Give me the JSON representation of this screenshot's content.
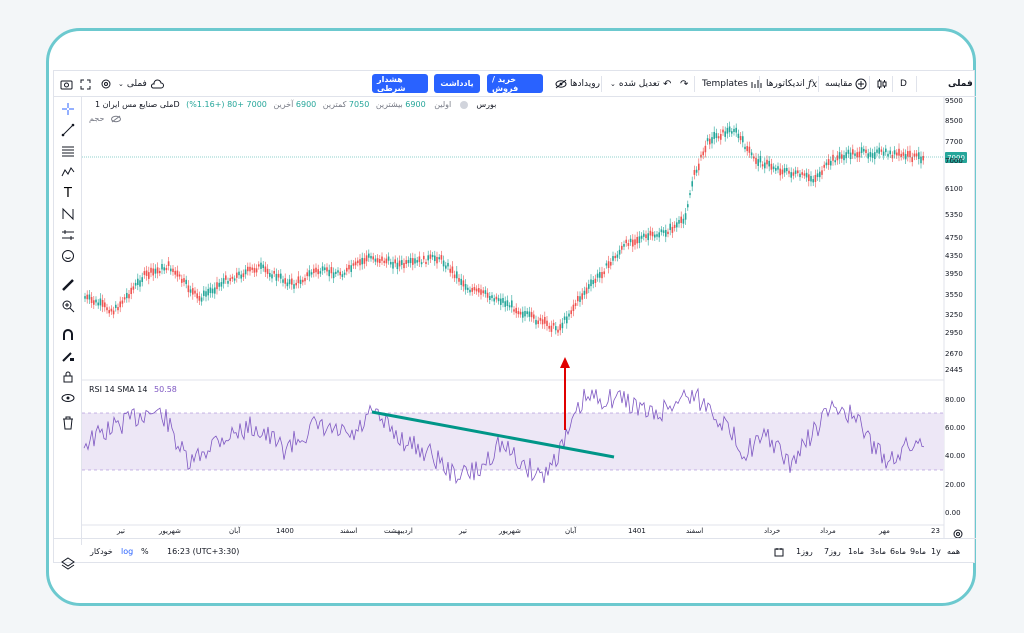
{
  "toolbar": {
    "symbol": "فملی",
    "interval": "D",
    "compare": "مقایسه",
    "indicators": "اندیکاتورها",
    "templates": "Templates",
    "adjust": "تعدیل شده",
    "events": "رویدادها",
    "buy_sell": "خرید / فروش",
    "note": "یادداشت",
    "alert": "هشدار شرطی",
    "layout_name": "فملی"
  },
  "legend": {
    "title": "ملی صنایع مس ایران",
    "interval": "1D",
    "exchange": "بورس",
    "open_label": "اولین",
    "open": "6900",
    "high_label": "بیشترین",
    "high": "7050",
    "low_label": "کمترین",
    "low": "6900",
    "close_label": "آخرین",
    "close": "7000",
    "change": "+80 (+1.16%)",
    "volume_label": "حجم"
  },
  "rsi_legend": {
    "name": "RSI 14 SMA 14",
    "value": "50.58"
  },
  "price_scale": [
    "9500",
    "8500",
    "7700",
    "7000",
    "6100",
    "5350",
    "4750",
    "4350",
    "3950",
    "3550",
    "3250",
    "2950",
    "2670",
    "2445"
  ],
  "rsi_scale": [
    "80.00",
    "60.00",
    "40.00",
    "20.00",
    "0.00"
  ],
  "last_price": "7000",
  "time_scale": [
    "تیر",
    "شهریور",
    "آبان",
    "1400",
    "اسفند",
    "اردیبهشت",
    "تیر",
    "شهریور",
    "آبان",
    "1401",
    "اسفند",
    "خرداد",
    "مرداد",
    "مهر",
    "23"
  ],
  "bottom": {
    "ranges": [
      "همه",
      "1y",
      "9ماه",
      "6ماه",
      "3ماه",
      "1ماه",
      "7روز",
      "1روز"
    ],
    "time": "16:23 (UTC+3:30)",
    "pct": "%",
    "log": "log",
    "auto": "خودکار"
  },
  "colors": {
    "up": "#26a69a",
    "down": "#ef5350",
    "rsi_line": "#7e57c2",
    "rsi_band": "#ede7f6",
    "trendline": "#009688",
    "arrow": "#e00000",
    "accent": "#2962ff",
    "frame": "#6cc9cf"
  }
}
